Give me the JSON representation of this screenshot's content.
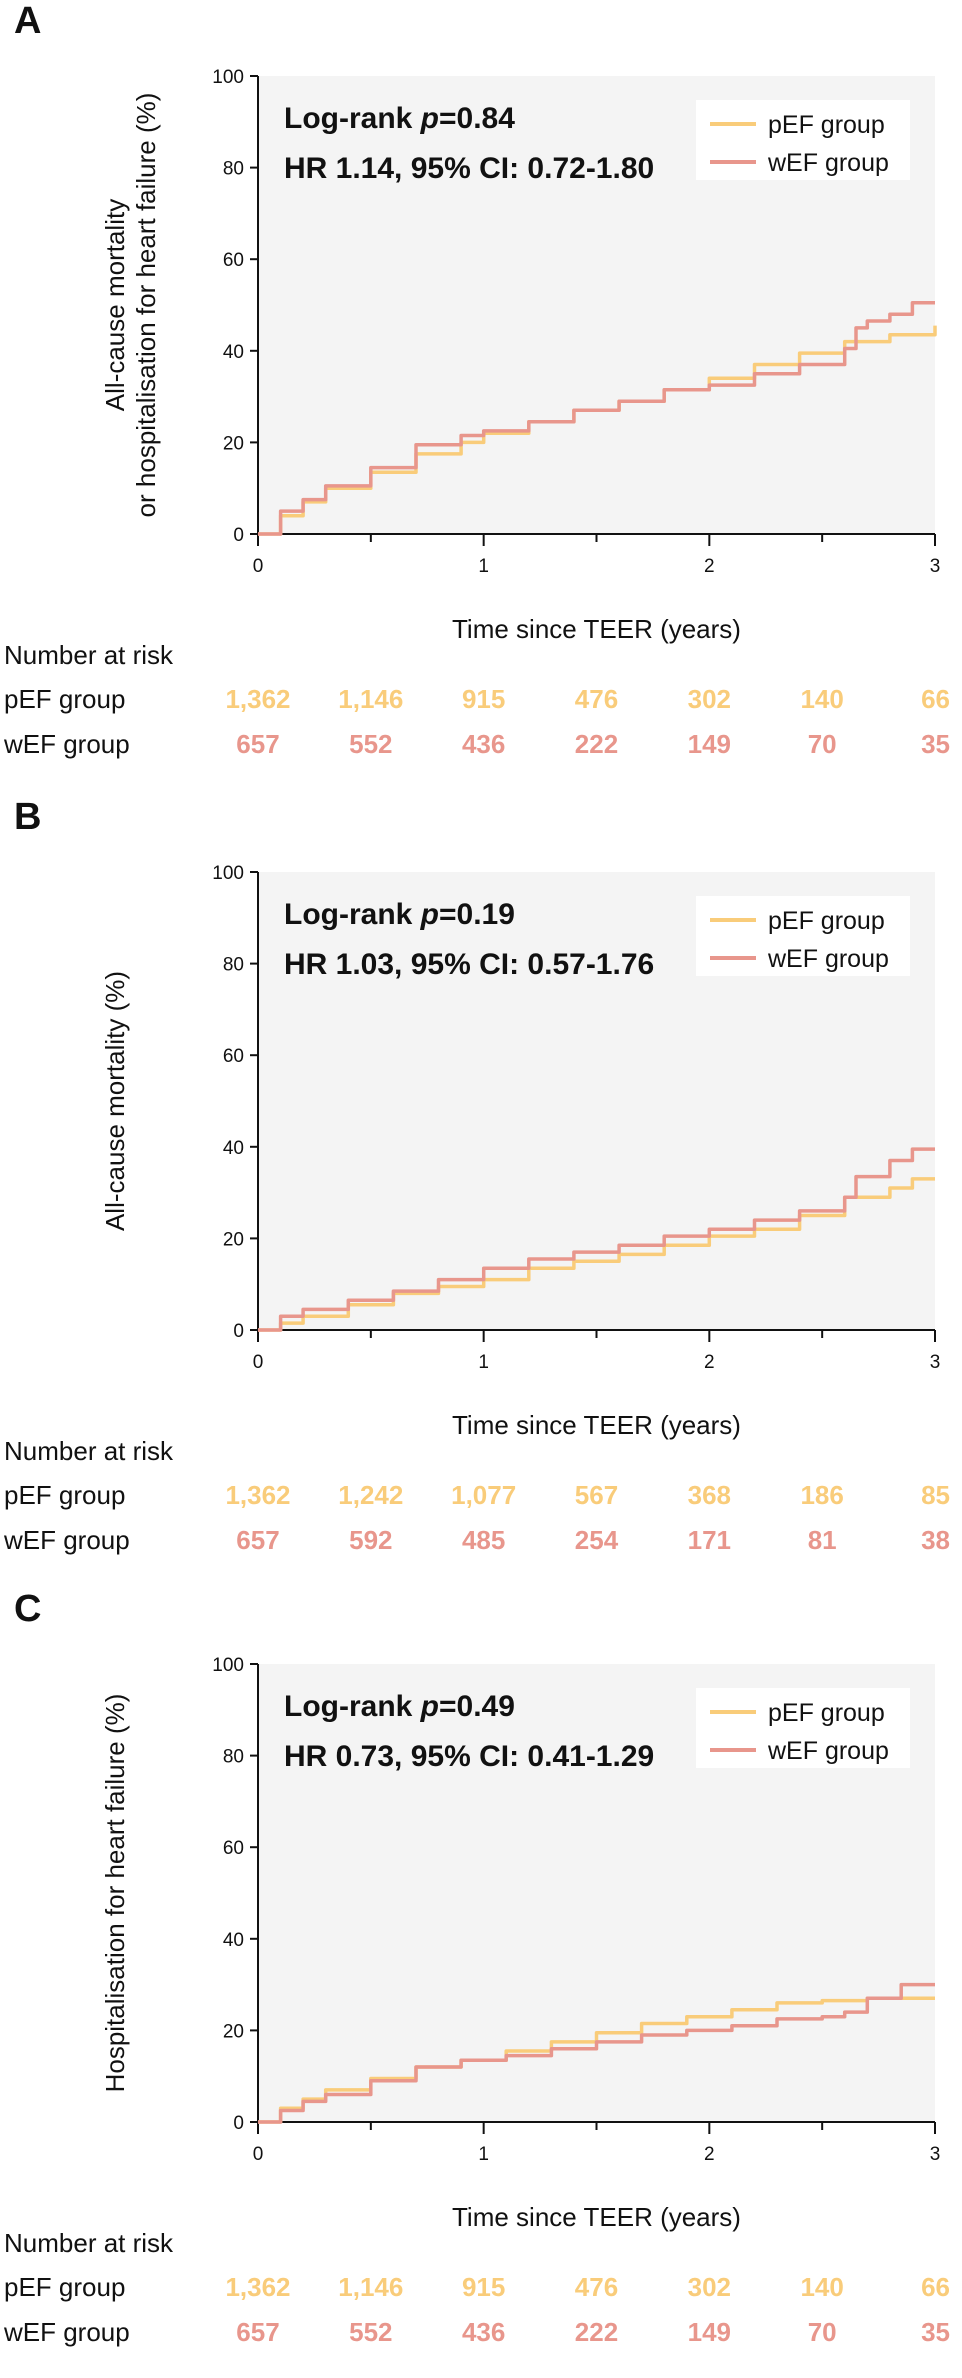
{
  "colors": {
    "pEF": "#f9cc7a",
    "wEF": "#e8968c",
    "plot_bg": "#f4f4f4",
    "axis": "#111111"
  },
  "chart_data": [
    {
      "panel_letter": "A",
      "type": "line",
      "ylabel_lines": [
        "All-cause mortality",
        "or hospitalisation for heart failure (%)"
      ],
      "xlabel": "Time since TEER (years)",
      "xlim": [
        0,
        3
      ],
      "ylim": [
        0,
        100
      ],
      "xticks": [
        0,
        1,
        2,
        3
      ],
      "yticks": [
        0,
        20,
        40,
        60,
        80,
        100
      ],
      "annotation_prefix": "Log-rank ",
      "annotation_p": "p",
      "annotation_value": "=0.84",
      "annotation_line2": "HR 1.14, 95% CI: 0.72-1.80",
      "legend_position": "top-right",
      "series": [
        {
          "name": "pEF group",
          "color": "#f9cc7a",
          "x": [
            0,
            0.1,
            0.2,
            0.3,
            0.5,
            0.7,
            0.9,
            1.0,
            1.2,
            1.4,
            1.6,
            1.8,
            2.0,
            2.2,
            2.4,
            2.6,
            2.8,
            3.0
          ],
          "y": [
            0,
            4,
            7,
            10,
            13.5,
            17.5,
            20,
            22,
            24.5,
            27,
            29,
            31.5,
            34,
            37,
            39.5,
            42,
            43.5,
            45.5
          ]
        },
        {
          "name": "wEF group",
          "color": "#e8968c",
          "x": [
            0,
            0.1,
            0.2,
            0.3,
            0.5,
            0.7,
            0.9,
            1.0,
            1.2,
            1.4,
            1.6,
            1.8,
            2.0,
            2.2,
            2.4,
            2.6,
            2.65,
            2.7,
            2.8,
            2.9,
            3.0
          ],
          "y": [
            0,
            5,
            7.5,
            10.5,
            14.5,
            19.5,
            21.5,
            22.5,
            24.5,
            27,
            29,
            31.5,
            32.5,
            35,
            37,
            40.5,
            45,
            46.5,
            48,
            50.5,
            50.5
          ]
        }
      ],
      "risk_table": {
        "title": "Number at risk",
        "times": [
          0,
          0.5,
          1,
          1.5,
          2,
          2.5,
          3
        ],
        "rows": [
          {
            "label": "pEF group",
            "color": "#f9cc7a",
            "values": [
              "1,362",
              "1,146",
              "915",
              "476",
              "302",
              "140",
              "66"
            ]
          },
          {
            "label": "wEF group",
            "color": "#e8968c",
            "values": [
              "657",
              "552",
              "436",
              "222",
              "149",
              "70",
              "35"
            ]
          }
        ]
      }
    },
    {
      "panel_letter": "B",
      "type": "line",
      "ylabel_lines": [
        "All-cause mortality (%)"
      ],
      "xlabel": "Time since TEER (years)",
      "xlim": [
        0,
        3
      ],
      "ylim": [
        0,
        100
      ],
      "xticks": [
        0,
        1,
        2,
        3
      ],
      "yticks": [
        0,
        20,
        40,
        60,
        80,
        100
      ],
      "annotation_prefix": "Log-rank ",
      "annotation_p": "p",
      "annotation_value": "=0.19",
      "annotation_line2": "HR 1.03, 95% CI: 0.57-1.76",
      "legend_position": "top-right",
      "series": [
        {
          "name": "pEF group",
          "color": "#f9cc7a",
          "x": [
            0,
            0.1,
            0.2,
            0.4,
            0.6,
            0.8,
            1.0,
            1.2,
            1.4,
            1.6,
            1.8,
            2.0,
            2.2,
            2.4,
            2.6,
            2.8,
            2.9,
            3.0
          ],
          "y": [
            0,
            1.5,
            3,
            5.5,
            8,
            9.5,
            11,
            13.5,
            15,
            16.5,
            18.5,
            20.5,
            22,
            25,
            29,
            31,
            33,
            33
          ]
        },
        {
          "name": "wEF group",
          "color": "#e8968c",
          "x": [
            0,
            0.1,
            0.2,
            0.4,
            0.6,
            0.8,
            1.0,
            1.2,
            1.4,
            1.6,
            1.8,
            2.0,
            2.2,
            2.4,
            2.6,
            2.65,
            2.8,
            2.9,
            3.0
          ],
          "y": [
            0,
            3,
            4.5,
            6.5,
            8.5,
            11,
            13.5,
            15.5,
            17,
            18.5,
            20.5,
            22,
            24,
            26,
            29,
            33.5,
            37,
            39.5,
            39.5
          ]
        }
      ],
      "risk_table": {
        "title": "Number at risk",
        "times": [
          0,
          0.5,
          1,
          1.5,
          2,
          2.5,
          3
        ],
        "rows": [
          {
            "label": "pEF group",
            "color": "#f9cc7a",
            "values": [
              "1,362",
              "1,242",
              "1,077",
              "567",
              "368",
              "186",
              "85"
            ]
          },
          {
            "label": "wEF group",
            "color": "#e8968c",
            "values": [
              "657",
              "592",
              "485",
              "254",
              "171",
              "81",
              "38"
            ]
          }
        ]
      }
    },
    {
      "panel_letter": "C",
      "type": "line",
      "ylabel_lines": [
        "Hospitalisation for heart failure (%)"
      ],
      "xlabel": "Time since TEER (years)",
      "xlim": [
        0,
        3
      ],
      "ylim": [
        0,
        100
      ],
      "xticks": [
        0,
        1,
        2,
        3
      ],
      "yticks": [
        0,
        20,
        40,
        60,
        80,
        100
      ],
      "annotation_prefix": "Log-rank ",
      "annotation_p": "p",
      "annotation_value": "=0.49",
      "annotation_line2": "HR 0.73, 95% CI: 0.41-1.29",
      "legend_position": "top-right",
      "series": [
        {
          "name": "pEF group",
          "color": "#f9cc7a",
          "x": [
            0,
            0.1,
            0.2,
            0.3,
            0.5,
            0.7,
            0.9,
            1.1,
            1.3,
            1.5,
            1.7,
            1.9,
            2.1,
            2.3,
            2.5,
            2.7,
            2.9,
            3.0
          ],
          "y": [
            0,
            3,
            5,
            7,
            9.5,
            12,
            13.5,
            15.5,
            17.5,
            19.5,
            21.5,
            23,
            24.5,
            26,
            26.5,
            27,
            27,
            27
          ]
        },
        {
          "name": "wEF group",
          "color": "#e8968c",
          "x": [
            0,
            0.1,
            0.2,
            0.3,
            0.5,
            0.7,
            0.9,
            1.1,
            1.3,
            1.5,
            1.7,
            1.9,
            2.1,
            2.3,
            2.5,
            2.6,
            2.7,
            2.85,
            3.0
          ],
          "y": [
            0,
            2.5,
            4.5,
            6,
            9,
            12,
            13.5,
            14.5,
            16,
            17.5,
            19,
            20,
            21,
            22.5,
            23,
            24,
            27,
            30,
            30
          ]
        }
      ],
      "risk_table": {
        "title": "Number at risk",
        "times": [
          0,
          0.5,
          1,
          1.5,
          2,
          2.5,
          3
        ],
        "rows": [
          {
            "label": "pEF group",
            "color": "#f9cc7a",
            "values": [
              "1,362",
              "1,146",
              "915",
              "476",
              "302",
              "140",
              "66"
            ]
          },
          {
            "label": "wEF group",
            "color": "#e8968c",
            "values": [
              "657",
              "552",
              "436",
              "222",
              "149",
              "70",
              "35"
            ]
          }
        ]
      }
    }
  ]
}
